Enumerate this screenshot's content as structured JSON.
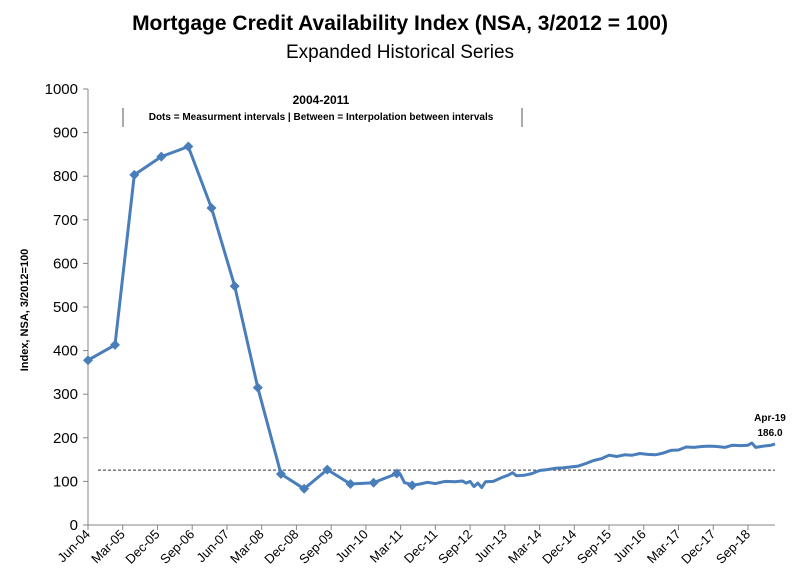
{
  "chart_data": {
    "type": "line",
    "title": "Mortgage Credit Availability Index (NSA, 3/2012 = 100)",
    "subtitle": "Expanded Historical Series",
    "ylabel": "Index, NSA, 3/2012=100",
    "xlabel": "",
    "ylim": [
      0,
      1000
    ],
    "yticks": [
      0,
      100,
      200,
      300,
      400,
      500,
      600,
      700,
      800,
      900,
      1000
    ],
    "xticks": [
      "Jun-04",
      "Mar-05",
      "Dec-05",
      "Sep-06",
      "Jun-07",
      "Mar-08",
      "Dec-08",
      "Sep-09",
      "Jun-10",
      "Mar-11",
      "Dec-11",
      "Sep-12",
      "Jun-13",
      "Mar-14",
      "Dec-14",
      "Sep-15",
      "Jun-16",
      "Mar-17",
      "Dec-17",
      "Sep-18"
    ],
    "x_start": "2004-06",
    "x_end": "2019-04",
    "reference_line": {
      "value": 126,
      "style": "dashed"
    },
    "period_annotation": {
      "title": "2004-2011",
      "text": "Dots = Measurment intervals  |  Between = Interpolation between intervals"
    },
    "last_point_annotation": {
      "date": "Apr-19",
      "value": "186.0"
    },
    "series": [
      {
        "color": "#4a7ebb",
        "measured_points": [
          {
            "date": "2004-06",
            "value": 378
          },
          {
            "date": "2005-01",
            "value": 413
          },
          {
            "date": "2005-06",
            "value": 803
          },
          {
            "date": "2006-01",
            "value": 845
          },
          {
            "date": "2006-08",
            "value": 868
          },
          {
            "date": "2007-02",
            "value": 727
          },
          {
            "date": "2007-08",
            "value": 548
          },
          {
            "date": "2008-02",
            "value": 315
          },
          {
            "date": "2008-08",
            "value": 117
          },
          {
            "date": "2009-02",
            "value": 83
          },
          {
            "date": "2009-08",
            "value": 127
          },
          {
            "date": "2010-02",
            "value": 94
          },
          {
            "date": "2010-08",
            "value": 97
          },
          {
            "date": "2011-02",
            "value": 118
          },
          {
            "date": "2011-06",
            "value": 91
          }
        ],
        "values": [
          {
            "date": "2004-06",
            "value": 378
          },
          {
            "date": "2005-01",
            "value": 413
          },
          {
            "date": "2005-06",
            "value": 803
          },
          {
            "date": "2006-01",
            "value": 845
          },
          {
            "date": "2006-08",
            "value": 868
          },
          {
            "date": "2007-02",
            "value": 727
          },
          {
            "date": "2007-08",
            "value": 548
          },
          {
            "date": "2008-02",
            "value": 315
          },
          {
            "date": "2008-08",
            "value": 117
          },
          {
            "date": "2009-02",
            "value": 83
          },
          {
            "date": "2009-08",
            "value": 127
          },
          {
            "date": "2010-02",
            "value": 94
          },
          {
            "date": "2010-08",
            "value": 97
          },
          {
            "date": "2011-02",
            "value": 118
          },
          {
            "date": "2011-03",
            "value": 115
          },
          {
            "date": "2011-04",
            "value": 97
          },
          {
            "date": "2011-05",
            "value": 95
          },
          {
            "date": "2011-06",
            "value": 91
          },
          {
            "date": "2011-08",
            "value": 94
          },
          {
            "date": "2011-10",
            "value": 98
          },
          {
            "date": "2011-12",
            "value": 95
          },
          {
            "date": "2012-02",
            "value": 99
          },
          {
            "date": "2012-03",
            "value": 100
          },
          {
            "date": "2012-05",
            "value": 99
          },
          {
            "date": "2012-07",
            "value": 101
          },
          {
            "date": "2012-08",
            "value": 96
          },
          {
            "date": "2012-09",
            "value": 100
          },
          {
            "date": "2012-10",
            "value": 88
          },
          {
            "date": "2012-11",
            "value": 96
          },
          {
            "date": "2012-12",
            "value": 86
          },
          {
            "date": "2013-01",
            "value": 99
          },
          {
            "date": "2013-03",
            "value": 100
          },
          {
            "date": "2013-05",
            "value": 108
          },
          {
            "date": "2013-07",
            "value": 115
          },
          {
            "date": "2013-08",
            "value": 120
          },
          {
            "date": "2013-09",
            "value": 113
          },
          {
            "date": "2013-11",
            "value": 114
          },
          {
            "date": "2014-01",
            "value": 118
          },
          {
            "date": "2014-03",
            "value": 125
          },
          {
            "date": "2014-05",
            "value": 127
          },
          {
            "date": "2014-07",
            "value": 130
          },
          {
            "date": "2014-09",
            "value": 131
          },
          {
            "date": "2014-11",
            "value": 133
          },
          {
            "date": "2015-01",
            "value": 135
          },
          {
            "date": "2015-03",
            "value": 141
          },
          {
            "date": "2015-05",
            "value": 148
          },
          {
            "date": "2015-07",
            "value": 152
          },
          {
            "date": "2015-09",
            "value": 160
          },
          {
            "date": "2015-11",
            "value": 157
          },
          {
            "date": "2016-01",
            "value": 161
          },
          {
            "date": "2016-03",
            "value": 160
          },
          {
            "date": "2016-05",
            "value": 164
          },
          {
            "date": "2016-07",
            "value": 162
          },
          {
            "date": "2016-09",
            "value": 161
          },
          {
            "date": "2016-11",
            "value": 165
          },
          {
            "date": "2017-01",
            "value": 171
          },
          {
            "date": "2017-03",
            "value": 172
          },
          {
            "date": "2017-05",
            "value": 179
          },
          {
            "date": "2017-07",
            "value": 178
          },
          {
            "date": "2017-09",
            "value": 180
          },
          {
            "date": "2017-11",
            "value": 181
          },
          {
            "date": "2018-01",
            "value": 180
          },
          {
            "date": "2018-03",
            "value": 178
          },
          {
            "date": "2018-05",
            "value": 183
          },
          {
            "date": "2018-07",
            "value": 182
          },
          {
            "date": "2018-09",
            "value": 183
          },
          {
            "date": "2018-10",
            "value": 188
          },
          {
            "date": "2018-11",
            "value": 178
          },
          {
            "date": "2019-01",
            "value": 181
          },
          {
            "date": "2019-03",
            "value": 183
          },
          {
            "date": "2019-04",
            "value": 186
          }
        ]
      }
    ]
  }
}
